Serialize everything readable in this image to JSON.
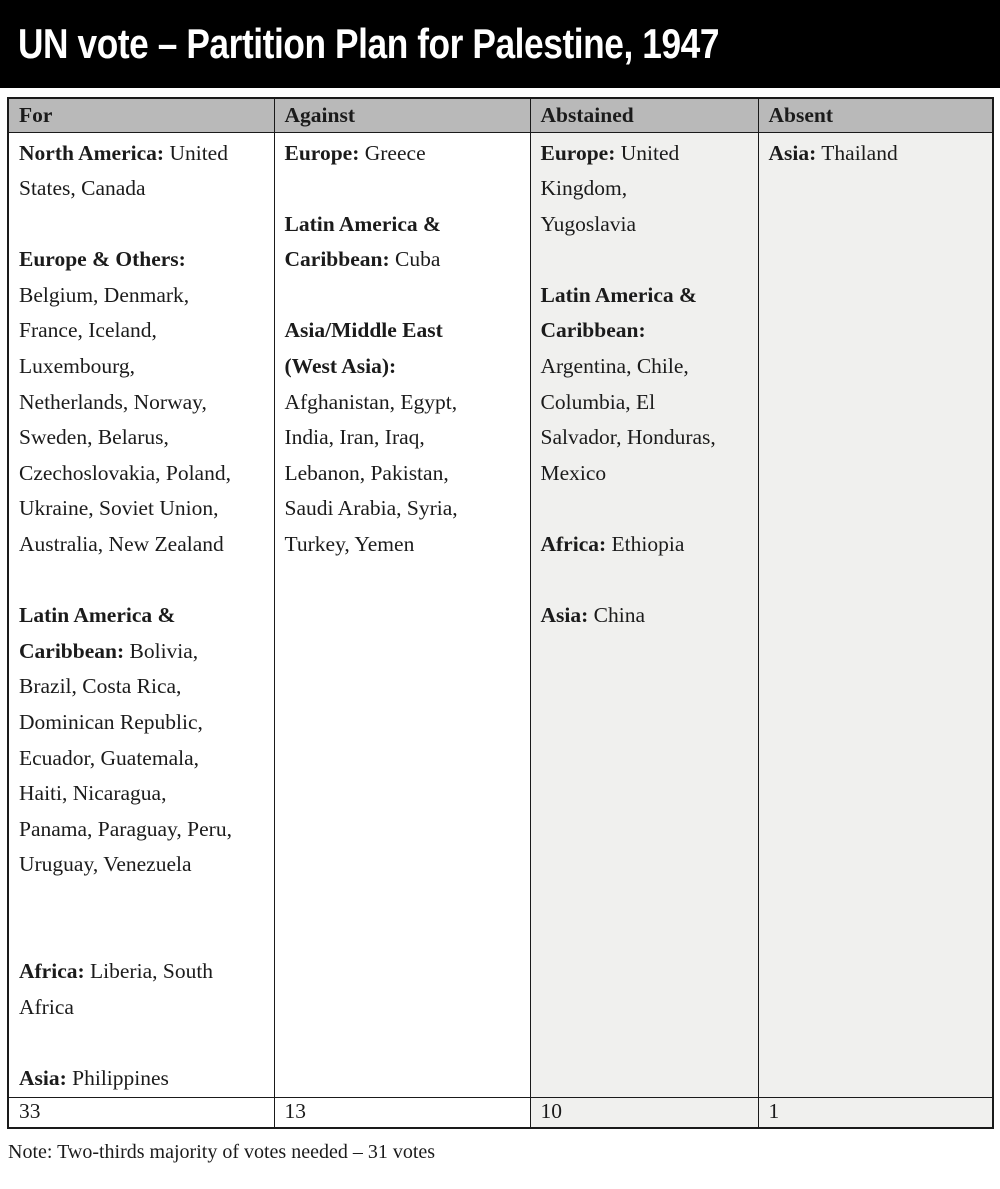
{
  "title": "UN vote – Partition Plan for Palestine, 1947",
  "note": "Note: Two-thirds majority of votes needed – 31 votes",
  "colors": {
    "banner_bg": "#000000",
    "banner_text": "#ffffff",
    "header_bg": "#b9b9b9",
    "shaded_cell_bg": "#f0f0ee",
    "border": "#1a1a1a",
    "body_text": "#1b1b1b"
  },
  "table": {
    "columns": [
      {
        "header": "For",
        "total": "33",
        "shaded": false,
        "groups": [
          {
            "label": "North America:",
            "countries": "United\nStates, Canada",
            "inline": true,
            "gap_after": 1
          },
          {
            "label": "Europe & Others:",
            "countries": "Belgium, Denmark,\nFrance, Iceland,\nLuxembourg,\nNetherlands, Norway,\nSweden, Belarus,\nCzechoslovakia, Poland,\nUkraine, Soviet Union,\nAustralia, New Zealand",
            "inline": false,
            "gap_after": 1
          },
          {
            "label": "Latin America &\nCaribbean:",
            "countries": "Bolivia,\nBrazil, Costa Rica,\nDominican Republic,\nEcuador, Guatemala,\nHaiti, Nicaragua,\nPanama, Paraguay, Peru,\nUruguay, Venezuela",
            "inline": true,
            "gap_after": 2
          },
          {
            "label": "Africa:",
            "countries": "Liberia, South\nAfrica",
            "inline": true,
            "gap_after": 1
          },
          {
            "label": "Asia:",
            "countries": "Philippines",
            "inline": true,
            "gap_after": 0
          }
        ]
      },
      {
        "header": "Against",
        "total": "13",
        "shaded": false,
        "groups": [
          {
            "label": "Europe:",
            "countries": "Greece",
            "inline": true,
            "gap_after": 1
          },
          {
            "label": "Latin America &\nCaribbean:",
            "countries": "Cuba",
            "inline": true,
            "gap_after": 1
          },
          {
            "label": "Asia/Middle East\n(West Asia):",
            "countries": "Afghanistan, Egypt,\nIndia, Iran, Iraq,\nLebanon, Pakistan,\nSaudi Arabia, Syria,\nTurkey, Yemen",
            "inline": false,
            "gap_after": 0
          }
        ]
      },
      {
        "header": "Abstained",
        "total": "10",
        "shaded": true,
        "groups": [
          {
            "label": "Europe:",
            "countries": "United\nKingdom,\nYugoslavia",
            "inline": true,
            "gap_after": 1
          },
          {
            "label": "Latin America &\nCaribbean:",
            "countries": "Argentina, Chile,\nColumbia, El\nSalvador, Honduras,\nMexico",
            "inline": false,
            "gap_after": 1
          },
          {
            "label": "Africa:",
            "countries": "Ethiopia",
            "inline": true,
            "gap_after": 1
          },
          {
            "label": "Asia:",
            "countries": "China",
            "inline": true,
            "gap_after": 0
          }
        ]
      },
      {
        "header": "Absent",
        "total": "1",
        "shaded": true,
        "groups": [
          {
            "label": "Asia:",
            "countries": "Thailand",
            "inline": true,
            "gap_after": 0
          }
        ]
      }
    ]
  }
}
